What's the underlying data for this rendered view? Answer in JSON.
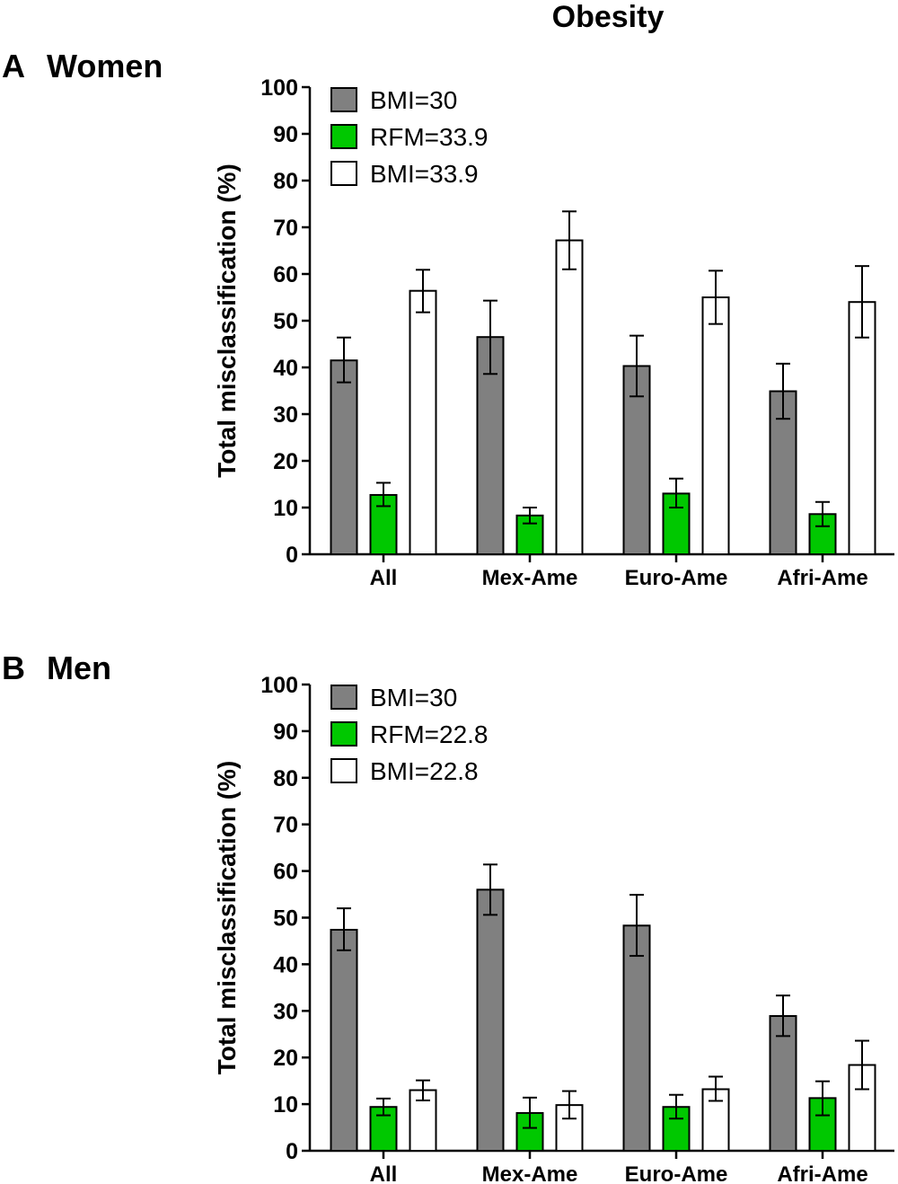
{
  "figure_title": "Obesity",
  "colors": {
    "bmi30": "#808080",
    "rfm": "#00c800",
    "bmi_alt": "#ffffff",
    "stroke": "#000000"
  },
  "chart_data": [
    {
      "type": "bar",
      "panel": "A",
      "title": "Women",
      "ylabel": "Total misclassification (%)",
      "xlabel": "",
      "ylim": [
        0,
        100
      ],
      "yticks": [
        0,
        10,
        20,
        30,
        40,
        50,
        60,
        70,
        80,
        90,
        100
      ],
      "categories": [
        "All",
        "Mex-Ame",
        "Euro-Ame",
        "Afri-Ame"
      ],
      "legend_position": "top-left",
      "series": [
        {
          "name": "BMI=30",
          "color": "#808080",
          "values": [
            41.5,
            46.5,
            40.3,
            34.9
          ],
          "err_low": [
            36.8,
            38.6,
            33.8,
            29.0
          ],
          "err_high": [
            46.4,
            54.3,
            46.8,
            40.8
          ]
        },
        {
          "name": "RFM=33.9",
          "color": "#00c800",
          "values": [
            12.7,
            8.3,
            13.0,
            8.6
          ],
          "err_low": [
            10.3,
            6.6,
            10.0,
            6.0
          ],
          "err_high": [
            15.3,
            10.0,
            16.2,
            11.2
          ]
        },
        {
          "name": "BMI=33.9",
          "color": "#ffffff",
          "values": [
            56.4,
            67.2,
            55.0,
            54.0
          ],
          "err_low": [
            51.8,
            61.0,
            49.3,
            46.4
          ],
          "err_high": [
            60.9,
            73.4,
            60.7,
            61.7
          ]
        }
      ]
    },
    {
      "type": "bar",
      "panel": "B",
      "title": "Men",
      "ylabel": "Total misclassification (%)",
      "xlabel": "",
      "ylim": [
        0,
        100
      ],
      "yticks": [
        0,
        10,
        20,
        30,
        40,
        50,
        60,
        70,
        80,
        90,
        100
      ],
      "categories": [
        "All",
        "Mex-Ame",
        "Euro-Ame",
        "Afri-Ame"
      ],
      "legend_position": "top-left",
      "series": [
        {
          "name": "BMI=30",
          "color": "#808080",
          "values": [
            47.4,
            56.0,
            48.3,
            28.9
          ],
          "err_low": [
            43.0,
            50.6,
            41.8,
            24.6
          ],
          "err_high": [
            52.0,
            61.4,
            54.9,
            33.3
          ]
        },
        {
          "name": "RFM=22.8",
          "color": "#00c800",
          "values": [
            9.4,
            8.1,
            9.4,
            11.3
          ],
          "err_low": [
            7.6,
            4.9,
            6.9,
            7.6
          ],
          "err_high": [
            11.2,
            11.4,
            12.0,
            14.9
          ]
        },
        {
          "name": "BMI=22.8",
          "color": "#ffffff",
          "values": [
            13.0,
            9.8,
            13.2,
            18.4
          ],
          "err_low": [
            10.8,
            6.9,
            10.7,
            13.2
          ],
          "err_high": [
            15.1,
            12.8,
            15.9,
            23.6
          ]
        }
      ]
    }
  ]
}
